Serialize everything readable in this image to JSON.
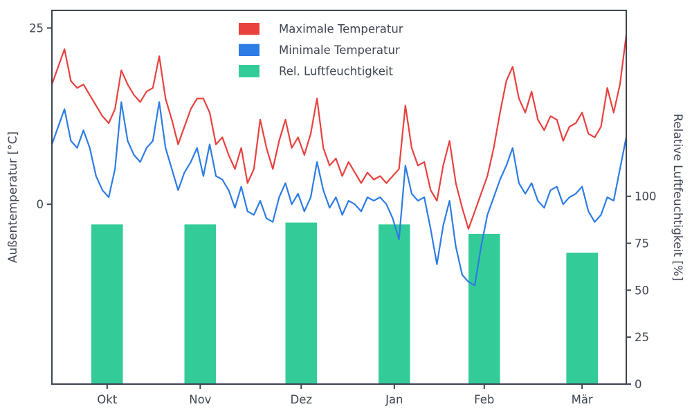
{
  "chart_data": {
    "type": "mixed",
    "title": "",
    "x_axis": {
      "tick_labels": [
        "Okt",
        "Nov",
        "Dez",
        "Jan",
        "Feb",
        "Mär"
      ],
      "tick_days": [
        17.5,
        47,
        79,
        108.5,
        137,
        168
      ],
      "domain_days": [
        0,
        182
      ]
    },
    "left_axis": {
      "label": "Außentemperatur [°C]",
      "ticks": [
        0,
        25
      ],
      "lim": [
        -25.5,
        27.5
      ]
    },
    "right_axis": {
      "label": "Relative Luftfeuchtigkeit [%]",
      "ticks": [
        0,
        25,
        50,
        75,
        100
      ],
      "lim": [
        0,
        199
      ]
    },
    "series": [
      {
        "name": "Maximale Temperatur",
        "type": "line",
        "axis": "left",
        "color": "#e8413e",
        "x_step_days": 2,
        "values": [
          17,
          19.5,
          22,
          17.5,
          16.5,
          17,
          15.5,
          14,
          12.5,
          11.5,
          13.5,
          19,
          17,
          15.5,
          14.5,
          16,
          16.5,
          21,
          15,
          12,
          8.5,
          11,
          13.5,
          15,
          15,
          13,
          8.5,
          9.5,
          7,
          5,
          8,
          3,
          5,
          12,
          8,
          5,
          9,
          12,
          8,
          9.5,
          7,
          10,
          15,
          8,
          5.5,
          6.5,
          4,
          6,
          4.5,
          3,
          4.5,
          3.5,
          4,
          3,
          4,
          5,
          14,
          8,
          5.5,
          6,
          2,
          0.5,
          5.5,
          9,
          3,
          -0.5,
          -3.5,
          -1,
          1.5,
          4,
          8,
          13,
          17.5,
          19.5,
          15,
          13,
          16,
          12,
          10.5,
          12.5,
          12,
          9,
          11,
          11.5,
          13,
          10,
          9.5,
          11,
          16.5,
          13,
          17,
          24
        ]
      },
      {
        "name": "Minimale Temperatur",
        "type": "line",
        "axis": "left",
        "color": "#2d7be5",
        "x_step_days": 2,
        "values": [
          8.5,
          11,
          13.5,
          9,
          8,
          10.5,
          8,
          4,
          2,
          1,
          5,
          14.5,
          9,
          7,
          6,
          8,
          9,
          14.5,
          8,
          5,
          2,
          4.5,
          6,
          8,
          4,
          8.5,
          4,
          3.5,
          2,
          -0.5,
          2.5,
          -1,
          -1.5,
          0.5,
          -2,
          -2.5,
          1,
          3,
          0,
          1.5,
          -1,
          1,
          6,
          2,
          -0.5,
          1,
          -1.5,
          0.5,
          0,
          -1,
          1,
          0.5,
          1,
          0,
          -2,
          -5,
          5.5,
          1.5,
          0.5,
          1,
          -3.5,
          -8.5,
          -3,
          0.5,
          -6,
          -10,
          -11,
          -11.5,
          -6,
          -1.5,
          1,
          3.5,
          5.5,
          8,
          3,
          1.5,
          3,
          0.5,
          -0.5,
          2,
          2.5,
          0,
          1,
          1.5,
          2.5,
          -1,
          -2.5,
          -1.5,
          1,
          0.5,
          5,
          9.5
        ]
      },
      {
        "name": "Rel. Luftfeuchtigkeit",
        "type": "bar",
        "axis": "right",
        "color": "#33cc99",
        "bar_width_days": 10,
        "categories": [
          "Okt",
          "Nov",
          "Dez",
          "Jan",
          "Feb",
          "Mär"
        ],
        "values": [
          85,
          85,
          86,
          85,
          80,
          70
        ]
      }
    ],
    "legend": {
      "position": "upper center",
      "entries": [
        "Maximale Temperatur",
        "Minimale Temperatur",
        "Rel. Luftfeuchtigkeit"
      ]
    },
    "grid": false
  },
  "colors": {
    "max_temp": "#e8413e",
    "min_temp": "#2d7be5",
    "humidity": "#33cc99",
    "spine": "#3d4450",
    "text": "#3f4652",
    "background": "#ffffff"
  }
}
